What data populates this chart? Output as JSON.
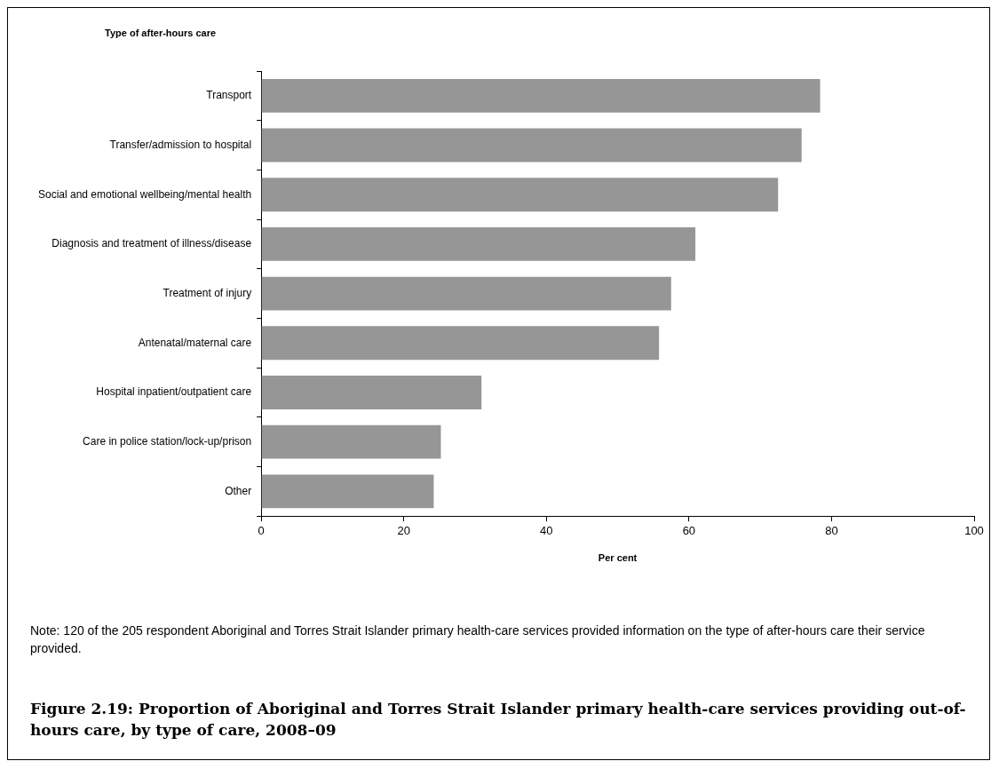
{
  "chart_data": {
    "type": "bar",
    "orientation": "horizontal",
    "title": "Figure 2.19: Proportion of Aboriginal and Torres Strait Islander primary health-care services providing out-of-hours care, by type of care, 2008–09",
    "xlabel": "Per cent",
    "ylabel": "Type of after-hours care",
    "categories": [
      "Transport",
      "Transfer/admission to hospital",
      "Social and emotional wellbeing/mental health",
      "Diagnosis and treatment of illness/disease",
      "Treatment of injury",
      "Antenatal/maternal care",
      "Hospital inpatient/outpatient care",
      "Care in police station/lock-up/prison",
      "Other"
    ],
    "values": [
      78.4,
      75.8,
      72.5,
      60.9,
      57.5,
      55.8,
      30.9,
      25.2,
      24.2
    ],
    "color": "#969696",
    "xlim": [
      0,
      100
    ],
    "xticks": [
      0,
      20,
      40,
      60,
      80,
      100
    ],
    "grid": false,
    "legend": false,
    "annotations": [
      "Note: 120 of the 205 respondent Aboriginal and Torres Strait Islander primary health-care services provided information on the type of after-hours care their service provided."
    ]
  }
}
